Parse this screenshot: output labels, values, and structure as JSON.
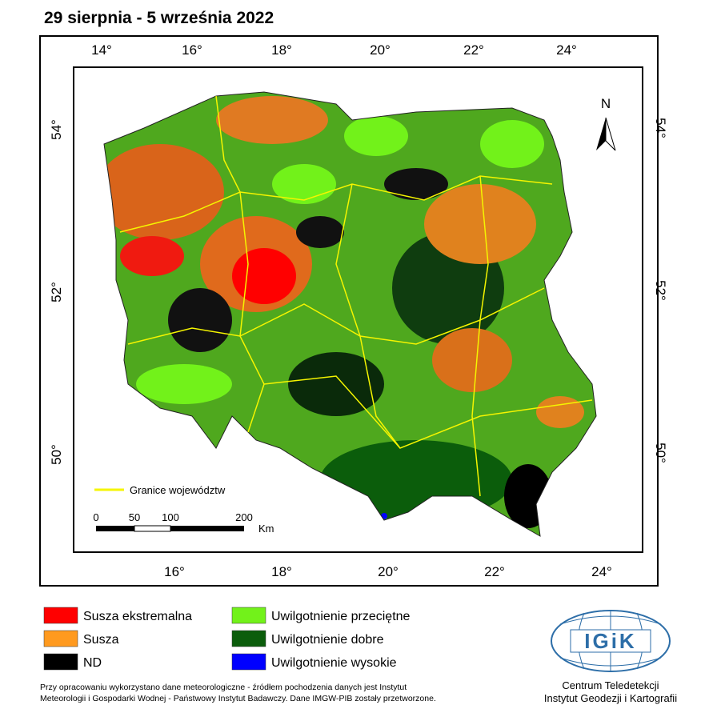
{
  "title": "29 sierpnia - 5 września 2022",
  "map": {
    "top_labels": [
      "14°",
      "16°",
      "18°",
      "20°",
      "22°",
      "24°"
    ],
    "bottom_labels": [
      "16°",
      "18°",
      "20°",
      "22°",
      "24°"
    ],
    "left_labels": [
      "54°",
      "52°",
      "50°"
    ],
    "right_labels": [
      "54°",
      "52°",
      "50°"
    ],
    "north": "N",
    "boundary_legend": "Granice województw",
    "scale": {
      "labels": [
        "0",
        "50",
        "100",
        "200"
      ],
      "unit": "Km"
    }
  },
  "legend": [
    {
      "label": "Susza ekstremalna",
      "color": "#ff0000"
    },
    {
      "label": "Susza",
      "color": "#ff9a1f"
    },
    {
      "label": "ND",
      "color": "#000000"
    },
    {
      "label": "Uwilgotnienie przeciętne",
      "color": "#72f21a"
    },
    {
      "label": "Uwilgotnienie dobre",
      "color": "#0b5d0b"
    },
    {
      "label": "Uwilgotnienie wysokie",
      "color": "#0000ff"
    }
  ],
  "note": [
    "Przy opracowaniu wykorzystano dane meteorologiczne - źródłem pochodzenia danych jest Instytut",
    "Meteorologii i Gospodarki Wodnej - Państwowy Instytut Badawczy. Dane IMGW-PIB zostały przetworzone."
  ],
  "logo": "IGiK",
  "institution": [
    "Centrum Teledetekcji",
    "Instytut Geodezji i Kartografii"
  ]
}
